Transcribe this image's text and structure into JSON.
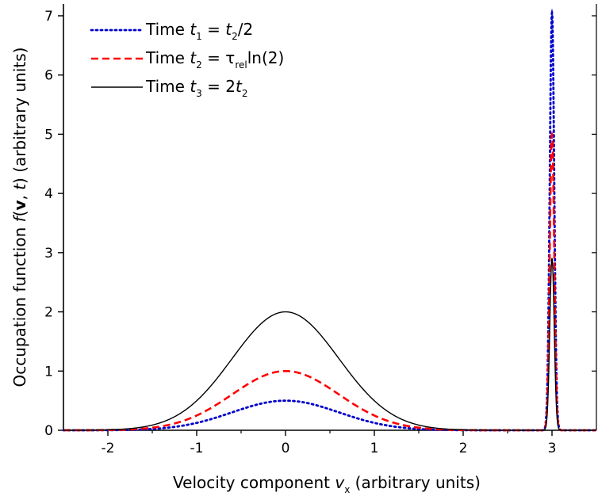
{
  "chart_data": {
    "type": "line",
    "title": "",
    "xlabel": {
      "prefix": "Velocity component ",
      "var": "v",
      "sub": "x",
      "suffix": " (arbitrary units)"
    },
    "ylabel": {
      "prefix": "Occupation function ",
      "f": "f",
      "open": "(",
      "bold": "v",
      "comma": ", ",
      "t": "t",
      "close": ")",
      "suffix": " (arbitrary units)"
    },
    "xlim": [
      -2.5,
      3.5
    ],
    "ylim": [
      0,
      7.2
    ],
    "xticks": [
      -2,
      -1,
      0,
      1,
      2,
      3
    ],
    "xtick_labels": [
      "-2",
      "-1",
      "0",
      "1",
      "2",
      "3"
    ],
    "yticks": [
      0,
      1,
      2,
      3,
      4,
      5,
      6,
      7
    ],
    "ytick_labels": [
      "0",
      "1",
      "2",
      "3",
      "4",
      "5",
      "6",
      "7"
    ],
    "grid": false,
    "legend_position": "top-left",
    "series": [
      {
        "style": "dotted",
        "color": "#0000cc",
        "legend": {
          "lead": "Time ",
          "t": "t",
          "tsub": "1",
          "eq": " = ",
          "rhs_t": "t",
          "rhs_sub": "2",
          "rhs_rest": "/2"
        },
        "gaussian": {
          "amplitude": 0.5,
          "center": 0.0,
          "sigma": 0.6
        },
        "peak": {
          "amplitude": 7.05,
          "center": 3.0,
          "sigma": 0.025
        }
      },
      {
        "style": "dashed",
        "color": "#ff0000",
        "legend": {
          "lead": "Time ",
          "t": "t",
          "tsub": "2",
          "eq": " = ",
          "tau": "τ",
          "tau_sub": "rel",
          "rhs_rest": "ln(2)"
        },
        "gaussian": {
          "amplitude": 1.0,
          "center": 0.0,
          "sigma": 0.6
        },
        "peak": {
          "amplitude": 5.0,
          "center": 3.0,
          "sigma": 0.025
        }
      },
      {
        "style": "solid",
        "color": "#000000",
        "legend": {
          "lead": "Time ",
          "t": "t",
          "tsub": "3",
          "eq": " = ",
          "rhs_pre": "2",
          "rhs_t": "t",
          "rhs_sub": "2"
        },
        "gaussian": {
          "amplitude": 2.0,
          "center": 0.0,
          "sigma": 0.6
        },
        "peak": {
          "amplitude": 2.9,
          "center": 3.0,
          "sigma": 0.025
        }
      }
    ]
  }
}
